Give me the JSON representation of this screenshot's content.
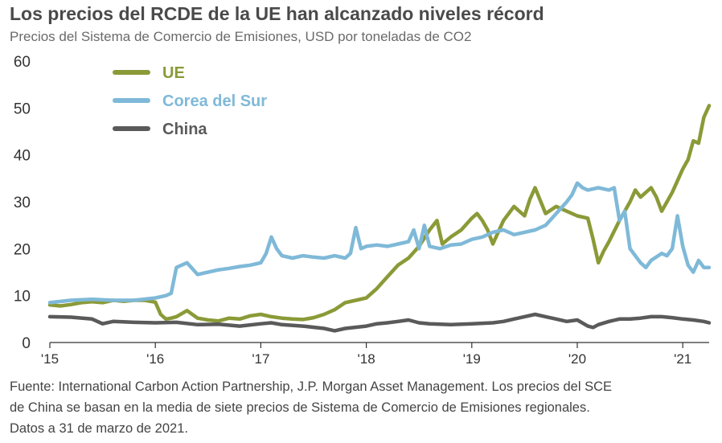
{
  "title": "Los precios del RCDE de la UE han alcanzado niveles récord",
  "subtitle": "Precios del Sistema de Comercio de Emisiones, USD por toneladas de CO2",
  "footer": {
    "line1": "Fuente: International Carbon Action Partnership, J.P. Morgan Asset Management. Los precios del SCE",
    "line2": "de China se basan en la media de siete precios de Sistema de Comercio de Emisiones regionales.",
    "line3": "Datos a 31 de marzo de 2021."
  },
  "chart_data": {
    "type": "line",
    "title": "Los precios del RCDE de la UE han alcanzado niveles récord",
    "subtitle": "Precios del Sistema de Comercio de Emisiones, USD por toneladas de CO2",
    "xlabel": "",
    "ylabel": "",
    "xlim": [
      2015.0,
      2021.25
    ],
    "ylim": [
      0,
      60
    ],
    "yticks": [
      0,
      10,
      20,
      30,
      40,
      50,
      60
    ],
    "xticks": [
      {
        "value": 2015,
        "label": "'15"
      },
      {
        "value": 2016,
        "label": "'16"
      },
      {
        "value": 2017,
        "label": "'17"
      },
      {
        "value": 2018,
        "label": "'18"
      },
      {
        "value": 2019,
        "label": "'19"
      },
      {
        "value": 2020,
        "label": "'20"
      },
      {
        "value": 2021,
        "label": "'21"
      }
    ],
    "grid": false,
    "legend": "top-left",
    "series": [
      {
        "name": "UE",
        "color": "#8b9a37",
        "x": [
          2015.0,
          2015.1,
          2015.2,
          2015.3,
          2015.4,
          2015.5,
          2015.6,
          2015.7,
          2015.8,
          2015.9,
          2016.0,
          2016.05,
          2016.1,
          2016.15,
          2016.2,
          2016.3,
          2016.4,
          2016.5,
          2016.6,
          2016.7,
          2016.8,
          2016.9,
          2017.0,
          2017.1,
          2017.2,
          2017.3,
          2017.4,
          2017.5,
          2017.6,
          2017.7,
          2017.8,
          2017.9,
          2018.0,
          2018.1,
          2018.2,
          2018.3,
          2018.4,
          2018.5,
          2018.6,
          2018.67,
          2018.72,
          2018.8,
          2018.9,
          2019.0,
          2019.05,
          2019.1,
          2019.15,
          2019.2,
          2019.3,
          2019.4,
          2019.5,
          2019.55,
          2019.6,
          2019.7,
          2019.8,
          2019.9,
          2020.0,
          2020.1,
          2020.15,
          2020.2,
          2020.25,
          2020.3,
          2020.4,
          2020.5,
          2020.55,
          2020.6,
          2020.7,
          2020.75,
          2020.8,
          2020.9,
          2021.0,
          2021.05,
          2021.1,
          2021.15,
          2021.2,
          2021.25
        ],
        "values": [
          8.0,
          7.8,
          8.1,
          8.5,
          8.7,
          8.5,
          9.0,
          8.8,
          9.0,
          9.0,
          8.6,
          6.0,
          5.0,
          5.2,
          5.5,
          6.8,
          5.2,
          4.8,
          4.6,
          5.2,
          5.0,
          5.7,
          6.0,
          5.5,
          5.2,
          5.0,
          4.9,
          5.3,
          6.0,
          7.0,
          8.5,
          9.0,
          9.5,
          11.5,
          14.0,
          16.5,
          18.0,
          20.5,
          24.0,
          26.0,
          21.0,
          22.5,
          24.0,
          26.5,
          27.5,
          26.0,
          24.0,
          21.0,
          26.0,
          29.0,
          27.0,
          30.5,
          33.0,
          27.5,
          29.0,
          28.0,
          27.0,
          26.5,
          22.0,
          17.0,
          19.5,
          21.5,
          26.0,
          30.0,
          32.5,
          31.0,
          33.0,
          31.0,
          28.0,
          32.0,
          37.0,
          39.0,
          43.0,
          42.5,
          48.0,
          50.5
        ]
      },
      {
        "name": "Corea del Sur",
        "color": "#7fb9d8",
        "x": [
          2015.0,
          2015.2,
          2015.4,
          2015.6,
          2015.8,
          2016.0,
          2016.1,
          2016.15,
          2016.2,
          2016.3,
          2016.4,
          2016.5,
          2016.6,
          2016.7,
          2016.8,
          2016.9,
          2017.0,
          2017.05,
          2017.1,
          2017.15,
          2017.2,
          2017.3,
          2017.4,
          2017.5,
          2017.6,
          2017.7,
          2017.8,
          2017.85,
          2017.9,
          2017.95,
          2018.0,
          2018.1,
          2018.2,
          2018.3,
          2018.4,
          2018.45,
          2018.5,
          2018.55,
          2018.6,
          2018.7,
          2018.8,
          2018.9,
          2019.0,
          2019.1,
          2019.2,
          2019.3,
          2019.4,
          2019.5,
          2019.6,
          2019.7,
          2019.8,
          2019.9,
          2019.95,
          2020.0,
          2020.05,
          2020.1,
          2020.2,
          2020.3,
          2020.35,
          2020.4,
          2020.45,
          2020.5,
          2020.55,
          2020.6,
          2020.65,
          2020.7,
          2020.8,
          2020.85,
          2020.9,
          2020.95,
          2021.0,
          2021.05,
          2021.1,
          2021.15,
          2021.2,
          2021.25
        ],
        "values": [
          8.5,
          9.0,
          9.2,
          9.0,
          9.0,
          9.5,
          10.0,
          10.5,
          16.0,
          17.0,
          14.5,
          15.0,
          15.5,
          15.8,
          16.2,
          16.5,
          17.0,
          19.0,
          22.5,
          20.0,
          18.5,
          18.0,
          18.5,
          18.2,
          18.0,
          18.5,
          18.0,
          19.0,
          24.5,
          20.0,
          20.5,
          20.8,
          20.5,
          21.0,
          21.5,
          24.0,
          20.0,
          25.0,
          20.5,
          20.0,
          20.8,
          21.0,
          22.0,
          22.5,
          23.5,
          24.0,
          23.0,
          23.5,
          24.0,
          25.0,
          27.5,
          30.0,
          31.5,
          34.0,
          33.0,
          32.5,
          33.0,
          32.5,
          33.0,
          26.0,
          28.0,
          20.0,
          18.5,
          17.0,
          16.0,
          17.5,
          19.0,
          18.5,
          20.0,
          27.0,
          20.5,
          16.5,
          15.0,
          17.5,
          16.0,
          16.0
        ]
      },
      {
        "name": "China",
        "color": "#5a5a5a",
        "x": [
          2015.0,
          2015.2,
          2015.4,
          2015.5,
          2015.6,
          2015.8,
          2016.0,
          2016.2,
          2016.4,
          2016.6,
          2016.8,
          2017.0,
          2017.1,
          2017.2,
          2017.4,
          2017.6,
          2017.7,
          2017.8,
          2018.0,
          2018.1,
          2018.2,
          2018.3,
          2018.4,
          2018.5,
          2018.6,
          2018.8,
          2019.0,
          2019.2,
          2019.3,
          2019.4,
          2019.5,
          2019.6,
          2019.7,
          2019.8,
          2019.9,
          2020.0,
          2020.1,
          2020.15,
          2020.2,
          2020.3,
          2020.4,
          2020.5,
          2020.6,
          2020.7,
          2020.8,
          2020.9,
          2021.0,
          2021.1,
          2021.2,
          2021.25
        ],
        "values": [
          5.5,
          5.4,
          5.0,
          4.0,
          4.5,
          4.3,
          4.2,
          4.3,
          3.8,
          3.9,
          3.5,
          4.0,
          4.2,
          3.8,
          3.5,
          3.0,
          2.5,
          3.0,
          3.5,
          4.0,
          4.2,
          4.5,
          4.8,
          4.2,
          4.0,
          3.8,
          4.0,
          4.2,
          4.5,
          5.0,
          5.5,
          6.0,
          5.5,
          5.0,
          4.5,
          4.8,
          3.5,
          3.2,
          3.8,
          4.5,
          5.0,
          5.0,
          5.2,
          5.5,
          5.5,
          5.3,
          5.0,
          4.8,
          4.5,
          4.2
        ]
      }
    ]
  }
}
